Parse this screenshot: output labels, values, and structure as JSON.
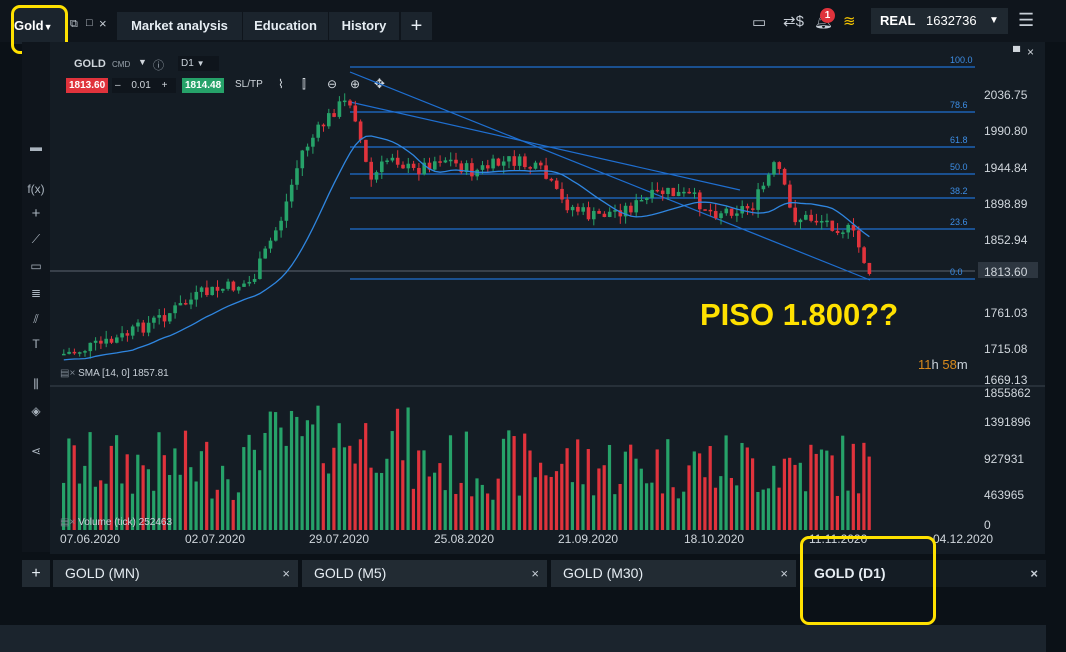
{
  "top": {
    "symbol": "Gold",
    "tabs": [
      "Market analysis",
      "Education",
      "History"
    ],
    "add": "+",
    "notif_count": "1",
    "account_mode": "REAL",
    "balance": "1632736"
  },
  "chart_header": {
    "symbol": "GOLD",
    "type": "CMD",
    "timeframe": "D1",
    "bid": "1813.60",
    "minus": "–",
    "lot": "0.01",
    "plus": "+",
    "ask": "1814.48",
    "sltp": "SL/TP",
    "sma_label": "SMA [14, 0]  1857.81",
    "volume_label": "Volume (tick)  252463"
  },
  "annotation": "PISO 1.800??",
  "countdown": {
    "h": "11",
    "h_unit": "h",
    "m": "58",
    "m_unit": "m"
  },
  "price_axis": [
    "2036.75",
    "1990.80",
    "1944.84",
    "1898.89",
    "1852.94",
    "1813.60",
    "1761.03",
    "1715.08",
    "1669.13"
  ],
  "volume_axis": [
    "1855862",
    "1391896",
    "927931",
    "463965",
    "0"
  ],
  "date_axis": [
    "07.06.2020",
    "02.07.2020",
    "29.07.2020",
    "25.08.2020",
    "21.09.2020",
    "18.10.2020",
    "11.11.2020",
    "04.12.2020"
  ],
  "fib_levels": [
    "100.0",
    "78.6",
    "61.8",
    "50.0",
    "38.2",
    "23.6",
    "0.0"
  ],
  "bottom_tabs": [
    "GOLD (MN)",
    "GOLD (M5)",
    "GOLD (M30)",
    "GOLD (D1)"
  ],
  "close_glyph": "×",
  "colors": {
    "bull": "#26a269",
    "bear": "#e0333c",
    "fib": "#1f6fd1",
    "annotation": "#ffe100"
  }
}
